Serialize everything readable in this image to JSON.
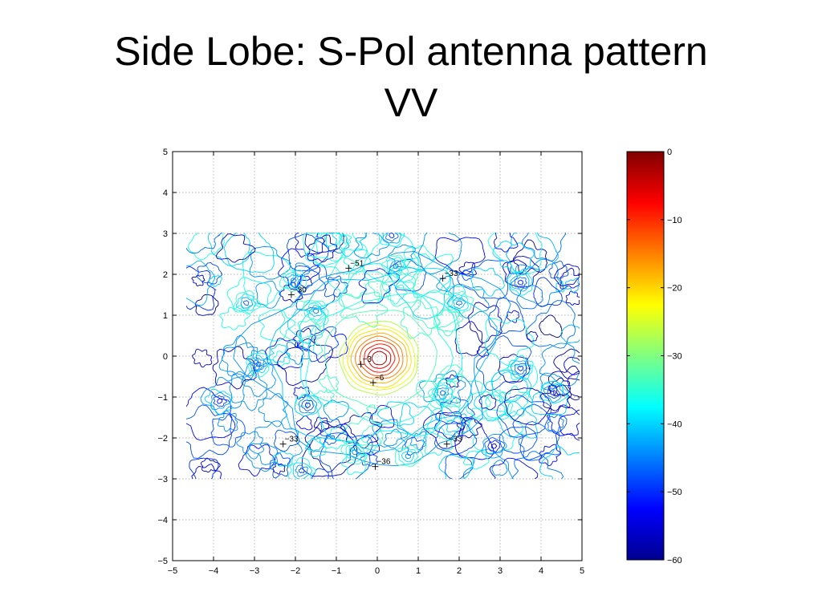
{
  "slide": {
    "title_line1": "Side Lobe: S-Pol antenna pattern",
    "title_line2": "VV"
  },
  "chart_data": {
    "type": "contour",
    "xlim": [
      -5,
      5
    ],
    "ylim": [
      -5,
      5
    ],
    "x_ticks": [
      -5,
      -4,
      -3,
      -2,
      -1,
      0,
      1,
      2,
      3,
      4,
      5
    ],
    "y_ticks": [
      -5,
      -4,
      -3,
      -2,
      -1,
      0,
      1,
      2,
      3,
      4,
      5
    ],
    "x_tick_labels": [
      "−5",
      "−4",
      "−3",
      "−2",
      "−1",
      "0",
      "1",
      "2",
      "3",
      "4",
      "5"
    ],
    "y_tick_labels": [
      "−5",
      "−4",
      "−3",
      "−2",
      "−1",
      "0",
      "1",
      "2",
      "3",
      "4",
      "5"
    ],
    "grid": true,
    "data_region": {
      "x": [
        -4.5,
        5
      ],
      "y": [
        -3,
        3
      ]
    },
    "colorbar": {
      "colormap": "jet",
      "range": [
        -60,
        0
      ],
      "ticks": [
        0,
        -10,
        -20,
        -30,
        -40,
        -50,
        -60
      ],
      "tick_labels": [
        "0",
        "−10",
        "−20",
        "−30",
        "−40",
        "−50",
        "−60"
      ]
    },
    "annotations": [
      {
        "x": -0.7,
        "y": 2.15,
        "label": "−51"
      },
      {
        "x": -2.1,
        "y": 1.5,
        "label": "−30"
      },
      {
        "x": 1.6,
        "y": 1.9,
        "label": "−33"
      },
      {
        "x": -0.4,
        "y": -0.2,
        "label": "−3"
      },
      {
        "x": -0.1,
        "y": -0.65,
        "label": "−6"
      },
      {
        "x": -2.3,
        "y": -2.15,
        "label": "−33"
      },
      {
        "x": 1.7,
        "y": -2.15,
        "label": "−33"
      },
      {
        "x": -0.05,
        "y": -2.7,
        "label": "−36"
      }
    ],
    "main_lobe": {
      "center": [
        0.05,
        -0.05
      ],
      "levels": [
        -3,
        -6,
        -9,
        -12,
        -15,
        -18,
        -21,
        -24,
        -27
      ]
    },
    "features": [
      {
        "x": -2.05,
        "y": 1.85,
        "level": -45
      },
      {
        "x": -1.7,
        "y": -1.2,
        "level": -52
      },
      {
        "x": -1.85,
        "y": -2.8,
        "level": -48
      },
      {
        "x": 2.85,
        "y": -2.2,
        "level": -55
      },
      {
        "x": 0.45,
        "y": 2.2,
        "level": -46
      },
      {
        "x": 0.35,
        "y": 2.95,
        "level": -50
      },
      {
        "x": -3.2,
        "y": 1.3,
        "level": -47
      },
      {
        "x": 3.5,
        "y": 1.8,
        "level": -50
      },
      {
        "x": -3.85,
        "y": -1.1,
        "level": -52
      },
      {
        "x": 4.3,
        "y": -0.9,
        "level": -51
      },
      {
        "x": 0.75,
        "y": -2.45,
        "level": -44
      },
      {
        "x": -0.55,
        "y": -2.35,
        "level": -44
      },
      {
        "x": 2.0,
        "y": 1.3,
        "level": -46
      },
      {
        "x": -1.5,
        "y": 1.1,
        "level": -45
      },
      {
        "x": 1.6,
        "y": -0.9,
        "level": -47
      },
      {
        "x": 3.5,
        "y": -0.3,
        "level": -50
      },
      {
        "x": -2.9,
        "y": -0.2,
        "level": -48
      }
    ]
  }
}
